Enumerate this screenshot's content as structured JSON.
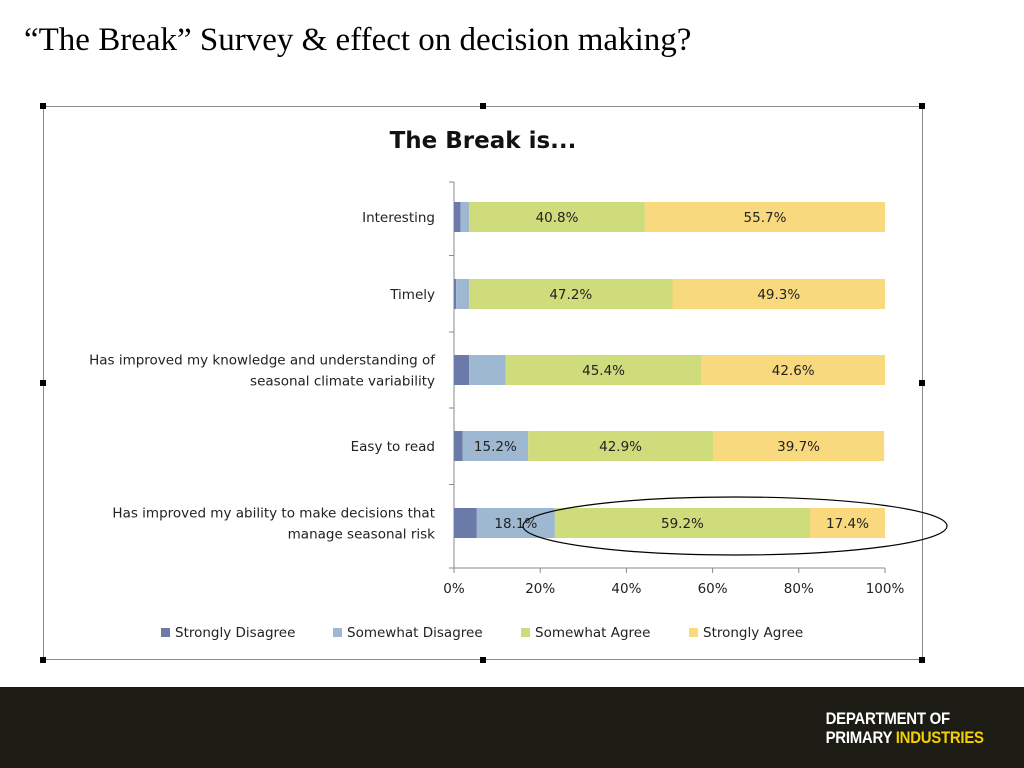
{
  "slide": {
    "title": "“The Break” Survey & effect on decision making?"
  },
  "chart_data": {
    "type": "bar",
    "orientation": "horizontal",
    "stacked": "percent",
    "title": "The Break is...",
    "categories": [
      "Interesting",
      "Timely",
      "Has improved my knowledge and understanding of seasonal climate variability",
      "Easy to read",
      "Has improved my ability to make decisions that manage seasonal risk"
    ],
    "category_lines": [
      [
        "Interesting"
      ],
      [
        "Timely"
      ],
      [
        "Has improved my knowledge and understanding of",
        "seasonal climate variability"
      ],
      [
        "Easy to read"
      ],
      [
        "Has improved my ability to make decisions that",
        "manage seasonal risk"
      ]
    ],
    "series": [
      {
        "name": "Strongly Disagree",
        "color": "#6b7aa8",
        "values": [
          1.5,
          0.5,
          3.5,
          2.0,
          5.3
        ],
        "labels": [
          "",
          "",
          "",
          "",
          ""
        ]
      },
      {
        "name": "Somewhat Disagree",
        "color": "#9fb8d2",
        "values": [
          2.0,
          3.0,
          8.5,
          15.2,
          18.1
        ],
        "labels": [
          "",
          "",
          "",
          "15.2%",
          "18.1%"
        ]
      },
      {
        "name": "Somewhat Agree",
        "color": "#cfdc7c",
        "values": [
          40.8,
          47.2,
          45.4,
          42.9,
          59.2
        ],
        "labels": [
          "40.8%",
          "47.2%",
          "45.4%",
          "42.9%",
          "59.2%"
        ]
      },
      {
        "name": "Strongly Agree",
        "color": "#f9d97d",
        "values": [
          55.7,
          49.3,
          42.6,
          39.7,
          17.4
        ],
        "labels": [
          "55.7%",
          "49.3%",
          "42.6%",
          "39.7%",
          "17.4%"
        ]
      }
    ],
    "x_ticks": [
      "0%",
      "20%",
      "40%",
      "60%",
      "80%",
      "100%"
    ],
    "xlim": [
      0,
      100
    ],
    "legend_position": "bottom",
    "annotation": "ellipse highlighting the last row"
  },
  "footer": {
    "logo_line1": "DEPARTMENT OF",
    "logo_line2a": "PRIMARY",
    "logo_line2b": "INDUSTRIES"
  }
}
